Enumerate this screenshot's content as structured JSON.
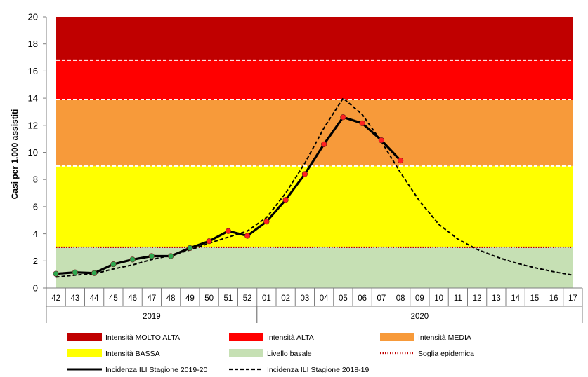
{
  "chart_data": {
    "type": "line",
    "ylabel": "Casi per 1.000 assistiti",
    "ylim": [
      0,
      20
    ],
    "yticks": [
      "0",
      "2",
      "4",
      "6",
      "8",
      "10",
      "12",
      "14",
      "16",
      "18",
      "20"
    ],
    "categories": [
      "42",
      "43",
      "44",
      "45",
      "46",
      "47",
      "48",
      "49",
      "50",
      "51",
      "52",
      "01",
      "02",
      "03",
      "04",
      "05",
      "06",
      "07",
      "08",
      "09",
      "10",
      "11",
      "12",
      "13",
      "14",
      "15",
      "16",
      "17"
    ],
    "year_groups": [
      {
        "label": "2019",
        "from_index": 0,
        "to_index": 10
      },
      {
        "label": "2020",
        "from_index": 11,
        "to_index": 27
      }
    ],
    "bands": [
      {
        "name": "Livello basale",
        "from": 0,
        "to": 3,
        "color": "#c6e0b4"
      },
      {
        "name": "Intensità BASSA",
        "from": 3,
        "to": 9,
        "color": "#ffff00"
      },
      {
        "name": "Intensità MEDIA",
        "from": 9,
        "to": 13.9,
        "color": "#f79a3a"
      },
      {
        "name": "Intensità ALTA",
        "from": 13.9,
        "to": 16.8,
        "color": "#ff0000"
      },
      {
        "name": "Intensità MOLTO ALTA",
        "from": 16.8,
        "to": 20,
        "color": "#c00000"
      }
    ],
    "threshold": {
      "name": "Soglia epidemica",
      "value": 3.0,
      "color": "#c00000"
    },
    "series": [
      {
        "name": "Incidenza ILI Stagione 2019-20",
        "color": "#000000",
        "values": [
          1.05,
          1.15,
          1.1,
          1.75,
          2.1,
          2.35,
          2.35,
          2.95,
          3.45,
          4.2,
          3.85,
          4.9,
          6.5,
          8.4,
          10.6,
          12.6,
          12.15,
          10.9,
          9.4,
          null,
          null,
          null,
          null,
          null,
          null,
          null,
          null,
          null
        ]
      },
      {
        "name": "Incidenza ILI Stagione 2018-19",
        "color": "#000000",
        "dashed": true,
        "values": [
          0.8,
          0.95,
          1.05,
          1.4,
          1.7,
          2.1,
          2.4,
          2.8,
          3.3,
          3.75,
          4.2,
          5.2,
          7.0,
          9.2,
          11.8,
          14.0,
          12.8,
          10.8,
          8.5,
          6.4,
          4.7,
          3.6,
          2.85,
          2.3,
          1.85,
          1.5,
          1.2,
          0.95
        ]
      }
    ],
    "legend": {
      "placement": "bottom",
      "items": [
        {
          "label": "Intensità MOLTO ALTA",
          "kind": "swatch",
          "color": "#c00000"
        },
        {
          "label": "Intensità ALTA",
          "kind": "swatch",
          "color": "#ff0000"
        },
        {
          "label": "Intensità MEDIA",
          "kind": "swatch",
          "color": "#f79a3a"
        },
        {
          "label": "Intensità BASSA",
          "kind": "swatch",
          "color": "#ffff00"
        },
        {
          "label": "Livello basale",
          "kind": "swatch",
          "color": "#c6e0b4"
        },
        {
          "label": "Soglia epidemica",
          "kind": "dotted",
          "color": "#c00000"
        },
        {
          "label": "Incidenza ILI Stagione 2019-20",
          "kind": "solid",
          "color": "#000000"
        },
        {
          "label": "Incidenza ILI Stagione 2018-19",
          "kind": "dashed",
          "color": "#000000"
        }
      ]
    },
    "grid": false
  }
}
